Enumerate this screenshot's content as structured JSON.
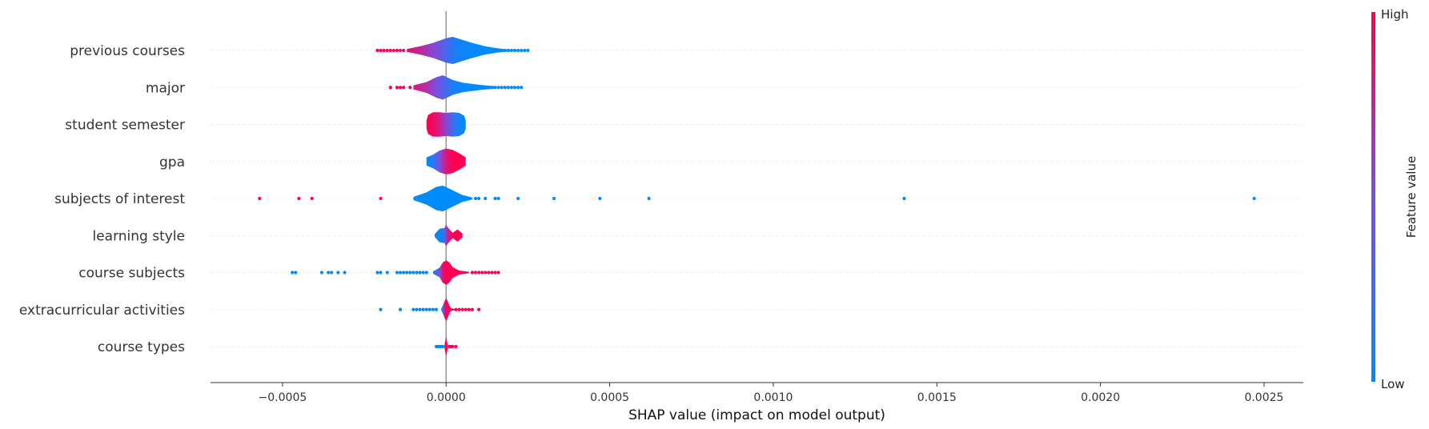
{
  "chart_data": {
    "type": "violin-summary",
    "xlabel": "SHAP value (impact on model output)",
    "xlim": [
      -0.00072,
      0.00262
    ],
    "x_ticks": [
      {
        "value": -0.0005,
        "label": "−0.0005"
      },
      {
        "value": 0.0,
        "label": "0.0000"
      },
      {
        "value": 0.0005,
        "label": "0.0005"
      },
      {
        "value": 0.001,
        "label": "0.0010"
      },
      {
        "value": 0.0015,
        "label": "0.0015"
      },
      {
        "value": 0.002,
        "label": "0.0020"
      },
      {
        "value": 0.0025,
        "label": "0.0025"
      }
    ],
    "colorbar": {
      "title": "Feature value",
      "high": "High",
      "low": "Low",
      "low_color": "#008bfb",
      "high_color": "#ff0052"
    },
    "features": [
      {
        "name": "previous courses",
        "violin": {
          "x": [
            -0.00012,
            -8e-05,
            -4e-05,
            0.0,
            2e-05,
            4e-05,
            8e-05,
            0.00012,
            0.00016,
            0.0002
          ],
          "w": [
            0.1,
            0.3,
            0.55,
            0.9,
            1.0,
            0.85,
            0.55,
            0.3,
            0.15,
            0.05
          ],
          "c": [
            0.9,
            0.75,
            0.55,
            0.3,
            0.15,
            0.08,
            0.03,
            0.0,
            0.0,
            0.0
          ]
        },
        "outliers": [
          [
            -0.00021,
            1
          ],
          [
            -0.0002,
            1
          ],
          [
            -0.00019,
            1
          ],
          [
            -0.00018,
            1
          ],
          [
            -0.00017,
            1
          ],
          [
            -0.00016,
            1
          ],
          [
            -0.00015,
            1
          ],
          [
            -0.00014,
            0.9
          ],
          [
            -0.00013,
            0.9
          ],
          [
            0.00016,
            0
          ],
          [
            0.00017,
            0
          ],
          [
            0.00018,
            0
          ],
          [
            0.00019,
            0
          ],
          [
            0.0002,
            0
          ],
          [
            0.00021,
            0
          ],
          [
            0.00022,
            0
          ],
          [
            0.00023,
            0
          ],
          [
            0.00024,
            0
          ],
          [
            0.00025,
            0
          ]
        ]
      },
      {
        "name": "major",
        "violin": {
          "x": [
            -0.0001,
            -6e-05,
            -3e-05,
            -1e-05,
            2e-05,
            5e-05,
            0.0001,
            0.00015
          ],
          "w": [
            0.15,
            0.4,
            0.75,
            0.9,
            0.55,
            0.35,
            0.2,
            0.08
          ],
          "c": [
            0.85,
            0.7,
            0.5,
            0.35,
            0.1,
            0.02,
            0.0,
            0.0
          ]
        },
        "outliers": [
          [
            -0.00017,
            1
          ],
          [
            -0.00015,
            1
          ],
          [
            -0.00014,
            1
          ],
          [
            -0.00013,
            1
          ],
          [
            -0.00011,
            1
          ],
          [
            0.00013,
            0
          ],
          [
            0.00014,
            0
          ],
          [
            0.00015,
            0
          ],
          [
            0.00016,
            0
          ],
          [
            0.00017,
            0
          ],
          [
            0.00018,
            0
          ],
          [
            0.00019,
            0
          ],
          [
            0.0002,
            0
          ],
          [
            0.00021,
            0
          ],
          [
            0.00022,
            0
          ],
          [
            0.00023,
            0
          ]
        ]
      },
      {
        "name": "student semester",
        "violin": {
          "x": [
            -6e-05,
            -5.5e-05,
            -4e-05,
            -2e-05,
            0.0,
            2e-05,
            4e-05,
            5.5e-05,
            6e-05
          ],
          "w": [
            0.3,
            0.7,
            0.9,
            0.9,
            0.85,
            0.9,
            0.85,
            0.65,
            0.3
          ],
          "c": [
            1.0,
            1.0,
            0.95,
            0.8,
            0.55,
            0.25,
            0.05,
            0.0,
            0.0
          ]
        },
        "outliers": []
      },
      {
        "name": "gpa",
        "violin": {
          "x": [
            -6e-05,
            -4e-05,
            -2e-05,
            0.0,
            2e-05,
            4e-05,
            6e-05
          ],
          "w": [
            0.3,
            0.5,
            0.8,
            0.95,
            0.85,
            0.6,
            0.3
          ],
          "c": [
            0.0,
            0.15,
            0.5,
            0.85,
            1.0,
            1.0,
            1.0
          ]
        },
        "outliers": []
      },
      {
        "name": "subjects of interest",
        "violin": {
          "x": [
            -0.0001,
            -6e-05,
            -3e-05,
            -1e-05,
            2e-05,
            5e-05,
            8e-05
          ],
          "w": [
            0.12,
            0.45,
            0.85,
            0.95,
            0.6,
            0.25,
            0.08
          ],
          "c": [
            0.0,
            0.0,
            0.0,
            0.0,
            0.0,
            0.0,
            0.0
          ]
        },
        "outliers": [
          [
            -0.00057,
            1
          ],
          [
            -0.00045,
            1
          ],
          [
            -0.00041,
            1
          ],
          [
            -0.0002,
            1
          ],
          [
            9e-05,
            0
          ],
          [
            0.0001,
            0
          ],
          [
            0.00012,
            0
          ],
          [
            0.00015,
            0
          ],
          [
            0.00016,
            0
          ],
          [
            0.00022,
            0
          ],
          [
            0.00033,
            0
          ],
          [
            0.00047,
            0
          ],
          [
            0.00062,
            0
          ],
          [
            0.0014,
            0
          ],
          [
            0.00247,
            0
          ]
        ]
      },
      {
        "name": "learning style",
        "violin": {
          "x": [
            -3.5e-05,
            -2e-05,
            -5e-06,
            0.0,
            5e-06,
            2e-05,
            3.5e-05,
            5e-05
          ],
          "w": [
            0.1,
            0.5,
            0.55,
            0.8,
            0.6,
            0.2,
            0.45,
            0.15
          ],
          "c": [
            0.0,
            0.05,
            0.2,
            0.6,
            0.8,
            1.0,
            1.0,
            1.0
          ]
        },
        "outliers": []
      },
      {
        "name": "course subjects",
        "violin": {
          "x": [
            -4e-05,
            -2e-05,
            -1e-05,
            0.0,
            1e-05,
            2e-05,
            4e-05,
            7e-05
          ],
          "w": [
            0.08,
            0.35,
            0.75,
            0.9,
            0.75,
            0.4,
            0.15,
            0.05
          ],
          "c": [
            0.0,
            0.5,
            0.9,
            1.0,
            1.0,
            1.0,
            1.0,
            1.0
          ]
        },
        "outliers": [
          [
            -0.00047,
            0
          ],
          [
            -0.00046,
            0
          ],
          [
            -0.00038,
            0
          ],
          [
            -0.00036,
            0
          ],
          [
            -0.00035,
            0
          ],
          [
            -0.00033,
            0
          ],
          [
            -0.00031,
            0
          ],
          [
            -0.00021,
            0
          ],
          [
            -0.0002,
            0
          ],
          [
            -0.00018,
            0
          ],
          [
            -0.00015,
            0
          ],
          [
            -0.00014,
            0
          ],
          [
            -0.00013,
            0
          ],
          [
            -0.00012,
            0
          ],
          [
            -0.00011,
            0
          ],
          [
            -0.0001,
            0
          ],
          [
            -9e-05,
            0
          ],
          [
            -8e-05,
            0
          ],
          [
            -7e-05,
            0
          ],
          [
            -6e-05,
            0
          ],
          [
            8e-05,
            1
          ],
          [
            9e-05,
            1
          ],
          [
            0.0001,
            1
          ],
          [
            0.00011,
            1
          ],
          [
            0.00012,
            1
          ],
          [
            0.00013,
            1
          ],
          [
            0.00014,
            1
          ],
          [
            0.00015,
            1
          ],
          [
            0.00016,
            1
          ]
        ]
      },
      {
        "name": "extracurricular activities",
        "violin": {
          "x": [
            -1.5e-05,
            -1e-05,
            -5e-06,
            0.0,
            5e-06,
            1e-05,
            1.5e-05,
            3e-05
          ],
          "w": [
            0.05,
            0.3,
            0.6,
            0.85,
            0.6,
            0.3,
            0.1,
            0.03
          ],
          "c": [
            0.0,
            0.3,
            0.8,
            1.0,
            1.0,
            1.0,
            1.0,
            1.0
          ]
        },
        "outliers": [
          [
            -0.0002,
            0
          ],
          [
            -0.00014,
            0
          ],
          [
            -0.0001,
            0
          ],
          [
            -9e-05,
            0
          ],
          [
            -8e-05,
            0
          ],
          [
            -7e-05,
            0
          ],
          [
            -6e-05,
            0
          ],
          [
            -5e-05,
            0
          ],
          [
            -4e-05,
            0
          ],
          [
            -3e-05,
            0
          ],
          [
            3e-05,
            1
          ],
          [
            4e-05,
            1
          ],
          [
            5e-05,
            1
          ],
          [
            6e-05,
            1
          ],
          [
            7e-05,
            1
          ],
          [
            8e-05,
            1
          ],
          [
            0.0001,
            1
          ]
        ]
      },
      {
        "name": "course types",
        "violin": {
          "x": [
            -5e-06,
            -2e-06,
            0.0,
            2e-06,
            5e-06
          ],
          "w": [
            0.1,
            0.5,
            0.7,
            0.5,
            0.1
          ],
          "c": [
            1.0,
            1.0,
            1.0,
            1.0,
            1.0
          ]
        },
        "outliers": [
          [
            -3e-05,
            0
          ],
          [
            -2.5e-05,
            0
          ],
          [
            -2e-05,
            0
          ],
          [
            -1.5e-05,
            0
          ],
          [
            -1e-05,
            0
          ],
          [
            1e-05,
            1
          ],
          [
            1.5e-05,
            1
          ],
          [
            2e-05,
            1
          ],
          [
            3e-05,
            1
          ]
        ]
      }
    ]
  }
}
